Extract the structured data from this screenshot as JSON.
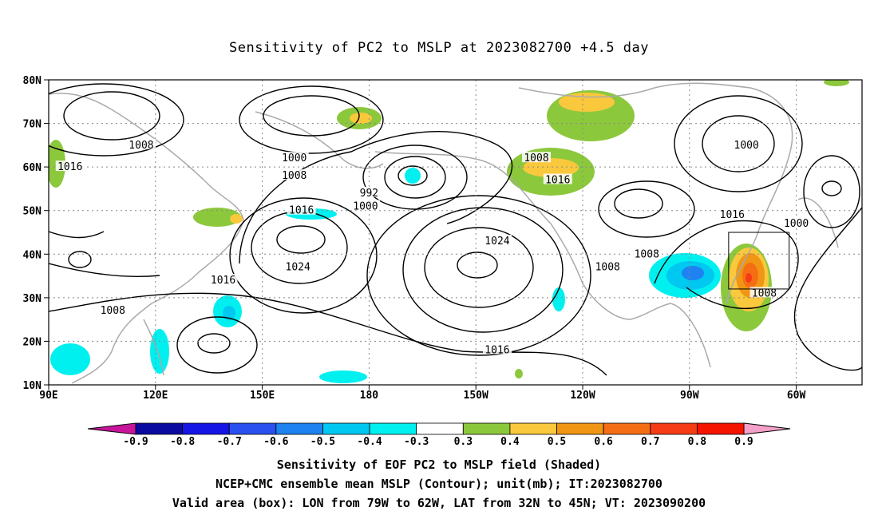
{
  "title": "Sensitivity of PC2 to MSLP at 2023082700 +4.5 day",
  "axes": {
    "lat_labels": [
      "80N",
      "70N",
      "60N",
      "50N",
      "40N",
      "30N",
      "20N",
      "10N"
    ],
    "lon_labels": [
      "90E",
      "120E",
      "150E",
      "180",
      "150W",
      "120W",
      "90W",
      "60W"
    ]
  },
  "contour_labels": [
    {
      "text": "1008",
      "lon": 116,
      "lat": 65
    },
    {
      "text": "1016",
      "lon": 96,
      "lat": 60
    },
    {
      "text": "1000",
      "lon": 159,
      "lat": 62
    },
    {
      "text": "1008",
      "lon": 159,
      "lat": 58
    },
    {
      "text": "1016",
      "lon": 161,
      "lat": 50
    },
    {
      "text": "1024",
      "lon": 160,
      "lat": 37
    },
    {
      "text": "1016",
      "lon": 139,
      "lat": 34
    },
    {
      "text": "1008",
      "lon": 108,
      "lat": 27
    },
    {
      "text": "992",
      "lon": 180,
      "lat": 54
    },
    {
      "text": "1000",
      "lon": 179,
      "lat": 51
    },
    {
      "text": "1008",
      "lon": -133,
      "lat": 62
    },
    {
      "text": "1016",
      "lon": -127,
      "lat": 57
    },
    {
      "text": "1024",
      "lon": -144,
      "lat": 43
    },
    {
      "text": "1016",
      "lon": -144,
      "lat": 18
    },
    {
      "text": "1008",
      "lon": -113,
      "lat": 37
    },
    {
      "text": "1008",
      "lon": -102,
      "lat": 40
    },
    {
      "text": "1016",
      "lon": -78,
      "lat": 49
    },
    {
      "text": "1000",
      "lon": -60,
      "lat": 47
    },
    {
      "text": "1000",
      "lon": -74,
      "lat": 65
    },
    {
      "text": "1008",
      "lon": -69,
      "lat": 31
    }
  ],
  "valid_box": {
    "lon_west": -79,
    "lon_east": -62,
    "lat_south": 32,
    "lat_north": 45
  },
  "colorbar": {
    "ticks": [
      "-0.9",
      "-0.8",
      "-0.7",
      "-0.6",
      "-0.5",
      "-0.4",
      "-0.3",
      "0.3",
      "0.4",
      "0.5",
      "0.6",
      "0.7",
      "0.8",
      "0.9"
    ],
    "colors": [
      "#0a0aa0",
      "#1515e6",
      "#2a50f0",
      "#1e82f0",
      "#00c8f0",
      "#00f0f0",
      "#ffffff",
      "#8cc83c",
      "#fac83c",
      "#f09614",
      "#f56e14",
      "#f53c14",
      "#f51400"
    ],
    "low_arrow_color": "#c8149b",
    "high_arrow_color": "#f5a0c8"
  },
  "captions": {
    "line1": "Sensitivity of EOF PC2 to MSLP field (Shaded)",
    "line2": "NCEP+CMC ensemble mean MSLP (Contour); unit(mb); IT:2023082700",
    "line3": "Valid area (box): LON from 79W to 62W, LAT from 32N to 45N; VT: 2023090200"
  }
}
